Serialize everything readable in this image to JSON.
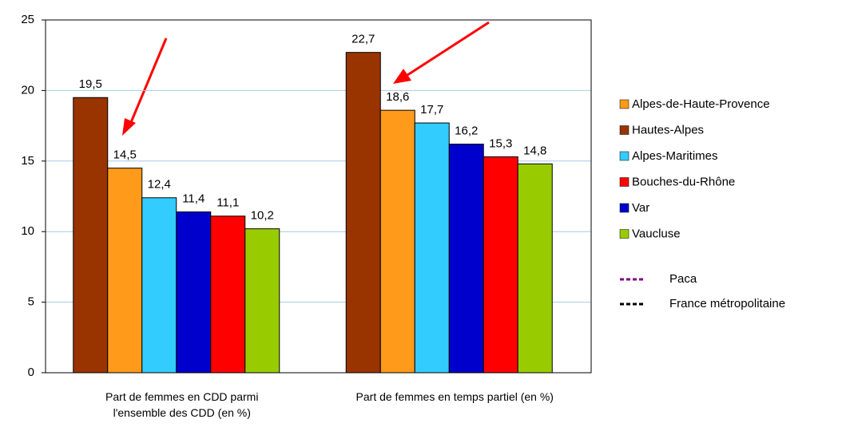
{
  "chart_data": {
    "type": "bar",
    "categories": [
      "Part de femmes en CDD parmi l'ensemble des CDD (en %)",
      "Part de femmes en temps partiel (en %)"
    ],
    "series": [
      {
        "name": "Alpes-de-Haute-Provence",
        "color": "#ff9a1a",
        "values": [
          14.5,
          18.6
        ],
        "value_labels": [
          "14,5",
          "18,6"
        ]
      },
      {
        "name": "Hautes-Alpes",
        "color": "#993300",
        "values": [
          19.5,
          22.7
        ],
        "value_labels": [
          "19,5",
          "22,7"
        ]
      },
      {
        "name": "Alpes-Maritimes",
        "color": "#33ccff",
        "values": [
          12.4,
          17.7
        ],
        "value_labels": [
          "12,4",
          "17,7"
        ]
      },
      {
        "name": "Bouches-du-Rhône",
        "color": "#ff0000",
        "values": [
          11.1,
          15.3
        ],
        "value_labels": [
          "11,1",
          "15,3"
        ]
      },
      {
        "name": "Var",
        "color": "#0000cc",
        "values": [
          11.4,
          16.2
        ],
        "value_labels": [
          "11,4",
          "16,2"
        ]
      },
      {
        "name": "Vaucluse",
        "color": "#99cc00",
        "values": [
          10.2,
          14.8
        ],
        "value_labels": [
          "10,2",
          "14,8"
        ]
      }
    ],
    "reference_lines": [
      {
        "name": "Paca",
        "color": "#800080"
      },
      {
        "name": "France métropolitaine",
        "color": "#000000"
      }
    ],
    "ylim": [
      0,
      25
    ],
    "yticks": [
      0,
      5,
      10,
      15,
      20,
      25
    ],
    "grid": true
  }
}
